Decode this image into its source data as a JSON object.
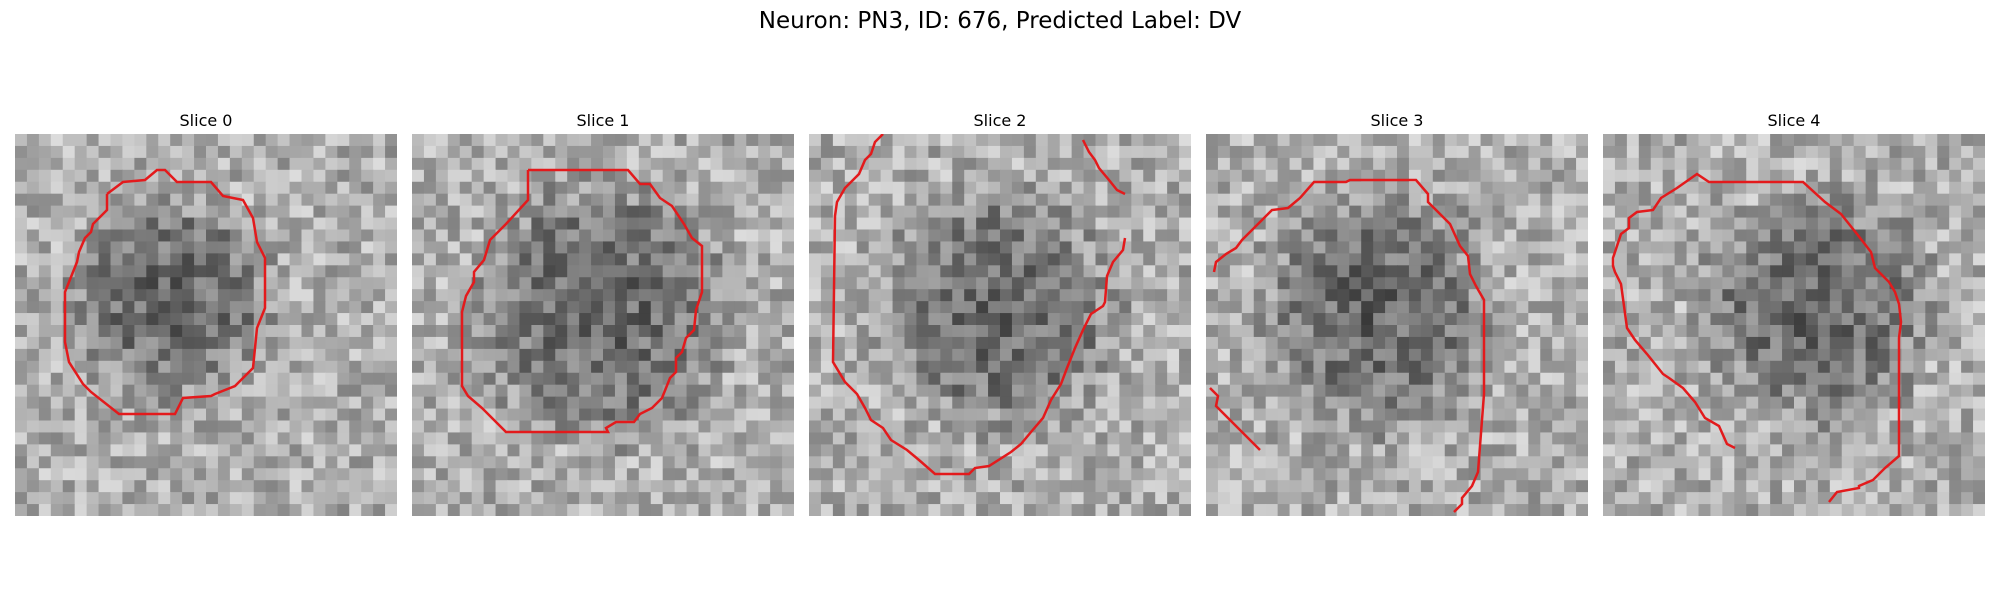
{
  "figure": {
    "title": "Neuron: PN3, ID: 676, Predicted Label: DV"
  },
  "panels": [
    {
      "title": "Slice 0"
    },
    {
      "title": "Slice 1"
    },
    {
      "title": "Slice 2"
    },
    {
      "title": "Slice 3"
    },
    {
      "title": "Slice 4"
    }
  ],
  "colors": {
    "contour": "#e31a1c"
  },
  "image": {
    "colormap": "grayscale",
    "grid_cells": 32
  }
}
